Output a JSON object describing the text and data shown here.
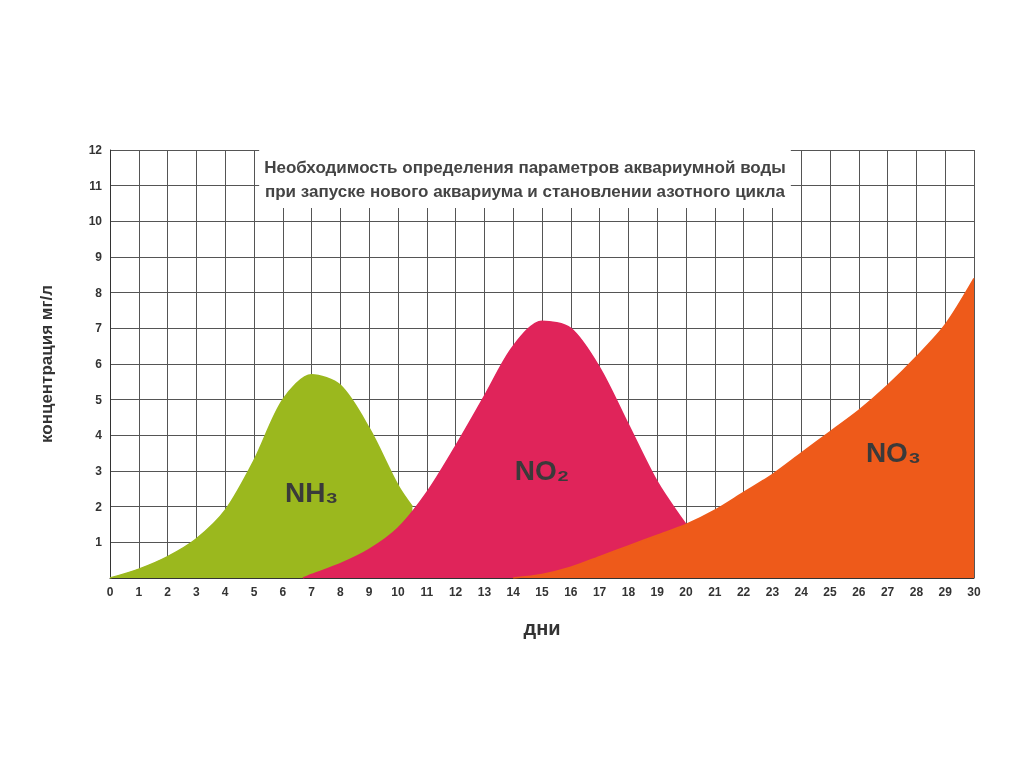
{
  "chart_data": {
    "type": "area",
    "title": "Необходимость определения параметров аквариумной воды\nпри запуске нового аквариума и становлении азотного цикла",
    "xlabel": "дни",
    "ylabel": "концентрация мг/л",
    "xlim": [
      0,
      30
    ],
    "xticks": [
      0,
      1,
      2,
      3,
      4,
      5,
      6,
      7,
      8,
      9,
      10,
      11,
      12,
      13,
      14,
      15,
      16,
      17,
      18,
      19,
      20,
      21,
      22,
      23,
      24,
      25,
      26,
      27,
      28,
      29,
      30
    ],
    "ylim": [
      0,
      12
    ],
    "yticks": [
      {
        "value": 0,
        "label": null
      },
      1,
      2,
      3,
      4,
      5,
      6,
      7,
      8,
      9,
      10,
      11,
      12
    ],
    "grid": true,
    "legend": false,
    "marker": "none",
    "series": [
      {
        "name": "NH₃",
        "color": "#9bb81e",
        "x": [
          0,
          1,
          2,
          3,
          4,
          5,
          6,
          7,
          8,
          9,
          10,
          10.5
        ],
        "values": [
          0,
          0.25,
          0.6,
          1.1,
          1.9,
          3.3,
          5.0,
          5.7,
          5.4,
          4.2,
          2.6,
          2.0
        ]
      },
      {
        "name": "NO₂",
        "color": "#e0245a",
        "x": [
          6.7,
          7,
          8,
          9,
          10,
          11,
          12,
          13,
          14,
          15,
          16,
          17,
          18,
          19,
          20
        ],
        "values": [
          0,
          0.1,
          0.4,
          0.8,
          1.4,
          2.4,
          3.7,
          5.1,
          6.5,
          7.2,
          7.0,
          5.9,
          4.3,
          2.7,
          1.5
        ]
      },
      {
        "name": "NO₃",
        "color": "#ee5a1a",
        "x": [
          14,
          15,
          16,
          17,
          18,
          19,
          20,
          21,
          22,
          23,
          24,
          25,
          26,
          27,
          28,
          29,
          30
        ],
        "values": [
          0,
          0.1,
          0.3,
          0.6,
          0.9,
          1.2,
          1.5,
          1.9,
          2.4,
          2.9,
          3.5,
          4.1,
          4.7,
          5.4,
          6.2,
          7.1,
          8.4
        ]
      }
    ]
  }
}
